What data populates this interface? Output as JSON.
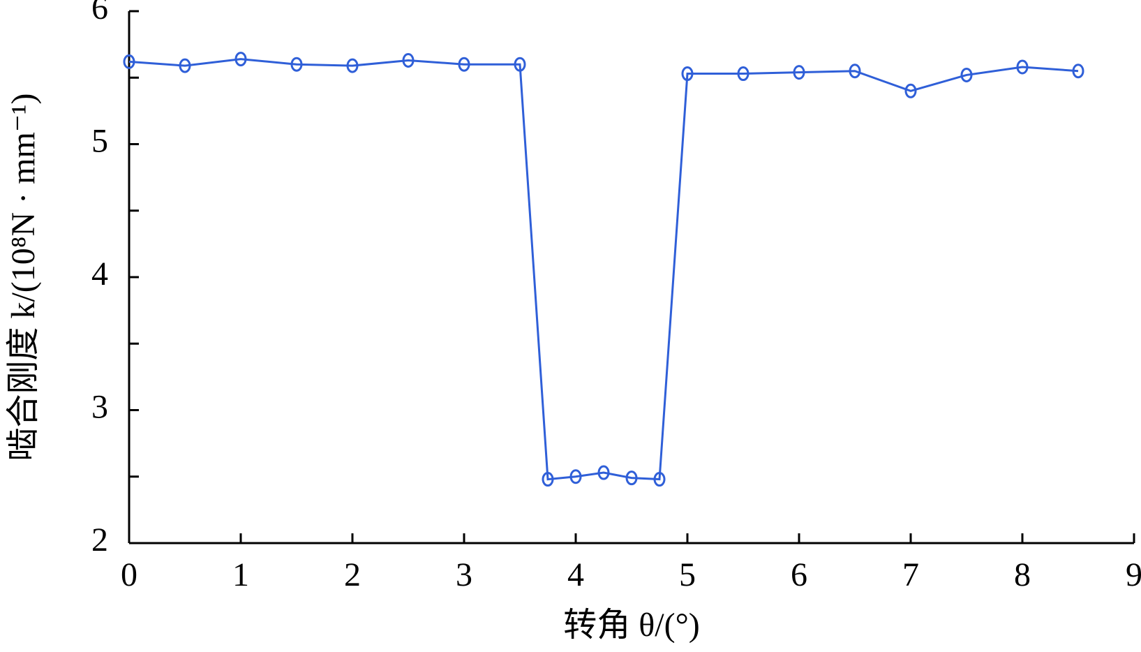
{
  "chart_data": {
    "type": "line",
    "x_label": "转角 θ/(°)",
    "y_label": "啮合刚度 k/(10⁸N · mm⁻¹)",
    "x": [
      0,
      0.5,
      1,
      1.5,
      2,
      2.5,
      3,
      3.5,
      3.75,
      4,
      4.25,
      4.5,
      4.75,
      5,
      5.5,
      6,
      6.5,
      7,
      7.5,
      8,
      8.5
    ],
    "series": [
      {
        "color": "#2f5fd8",
        "values": [
          5.62,
          5.59,
          5.64,
          5.6,
          5.59,
          5.63,
          5.6,
          5.6,
          2.48,
          2.5,
          2.53,
          2.49,
          2.48,
          5.53,
          5.53,
          5.54,
          5.55,
          5.4,
          5.52,
          5.58,
          5.55
        ]
      }
    ],
    "xlim": [
      0,
      9
    ],
    "xticks": [
      0,
      1,
      2,
      3,
      4,
      5,
      6,
      7,
      8,
      9
    ],
    "ylim": [
      2,
      6
    ],
    "yticks": [
      2,
      3,
      4,
      5,
      6
    ],
    "yminorticks": [
      2.5,
      3.5,
      4.5,
      5.5
    ],
    "grid": false
  }
}
